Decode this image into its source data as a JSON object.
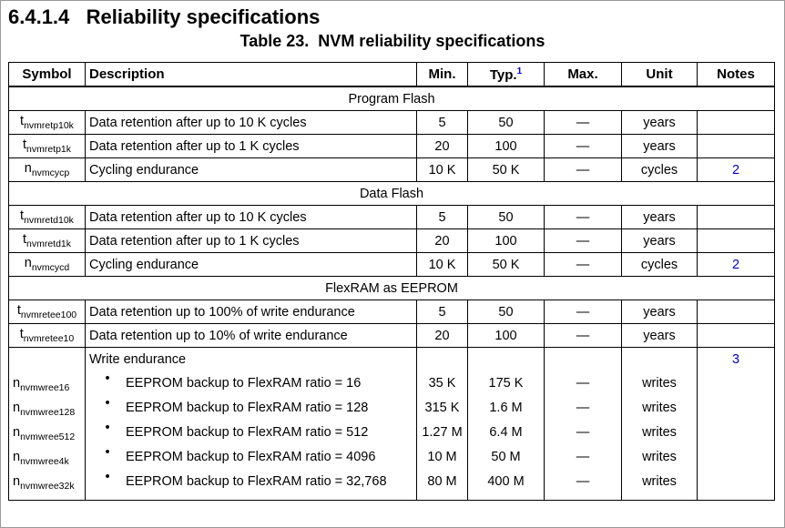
{
  "heading": {
    "number": "6.4.1.4",
    "title": "Reliability specifications"
  },
  "table": {
    "title": "Table 23.  NVM reliability specifications",
    "columns": [
      "Symbol",
      "Description",
      "Min.",
      {
        "text": "Typ.",
        "sup": "1"
      },
      "Max.",
      "Unit",
      "Notes"
    ],
    "sections": [
      {
        "title": "Program Flash",
        "rows": [
          {
            "symbol": {
              "base": "t",
              "sub": "nvmretp10k"
            },
            "description": "Data retention after up to 10 K cycles",
            "min": "5",
            "typ": "50",
            "max": "—",
            "unit": "years"
          },
          {
            "symbol": {
              "base": "t",
              "sub": "nvmretp1k"
            },
            "description": "Data retention after up to 1 K cycles",
            "min": "20",
            "typ": "100",
            "max": "—",
            "unit": "years"
          },
          {
            "symbol": {
              "base": "n",
              "sub": "nvmcycp"
            },
            "description": "Cycling endurance",
            "min": "10 K",
            "typ": "50 K",
            "max": "—",
            "unit": "cycles",
            "notes": "2"
          }
        ]
      },
      {
        "title": "Data Flash",
        "rows": [
          {
            "symbol": {
              "base": "t",
              "sub": "nvmretd10k"
            },
            "description": "Data retention after up to 10 K cycles",
            "min": "5",
            "typ": "50",
            "max": "—",
            "unit": "years"
          },
          {
            "symbol": {
              "base": "t",
              "sub": "nvmretd1k"
            },
            "description": "Data retention after up to 1 K cycles",
            "min": "20",
            "typ": "100",
            "max": "—",
            "unit": "years"
          },
          {
            "symbol": {
              "base": "n",
              "sub": "nvmcycd"
            },
            "description": "Cycling endurance",
            "min": "10 K",
            "typ": "50 K",
            "max": "—",
            "unit": "cycles",
            "notes": "2"
          }
        ]
      },
      {
        "title": "FlexRAM as EEPROM",
        "rows": [
          {
            "symbol": {
              "base": "t",
              "sub": "nvmretee100"
            },
            "description": "Data retention up to 100% of write endurance",
            "min": "5",
            "typ": "50",
            "max": "—",
            "unit": "years"
          },
          {
            "symbol": {
              "base": "t",
              "sub": "nvmretee10"
            },
            "description": "Data retention up to 10% of write endurance",
            "min": "20",
            "typ": "100",
            "max": "—",
            "unit": "years"
          },
          {
            "description": "Write endurance",
            "notes": "3",
            "items": [
              {
                "symbol": {
                  "base": "n",
                  "sub": "nvmwree16"
                },
                "description": "EEPROM backup to FlexRAM ratio = 16",
                "min": "35 K",
                "typ": "175 K",
                "max": "—",
                "unit": "writes"
              },
              {
                "symbol": {
                  "base": "n",
                  "sub": "nvmwree128"
                },
                "description": "EEPROM backup to FlexRAM ratio = 128",
                "min": "315 K",
                "typ": "1.6 M",
                "max": "—",
                "unit": "writes"
              },
              {
                "symbol": {
                  "base": "n",
                  "sub": "nvmwree512"
                },
                "description": "EEPROM backup to FlexRAM ratio = 512",
                "min": "1.27 M",
                "typ": "6.4 M",
                "max": "—",
                "unit": "writes"
              },
              {
                "symbol": {
                  "base": "n",
                  "sub": "nvmwree4k"
                },
                "description": "EEPROM backup to FlexRAM ratio = 4096",
                "min": "10 M",
                "typ": "50 M",
                "max": "—",
                "unit": "writes"
              },
              {
                "symbol": {
                  "base": "n",
                  "sub": "nvmwree32k"
                },
                "description": "EEPROM backup to FlexRAM ratio = 32,768",
                "min": "80 M",
                "typ": "400 M",
                "max": "—",
                "unit": "writes"
              }
            ]
          }
        ]
      }
    ]
  }
}
